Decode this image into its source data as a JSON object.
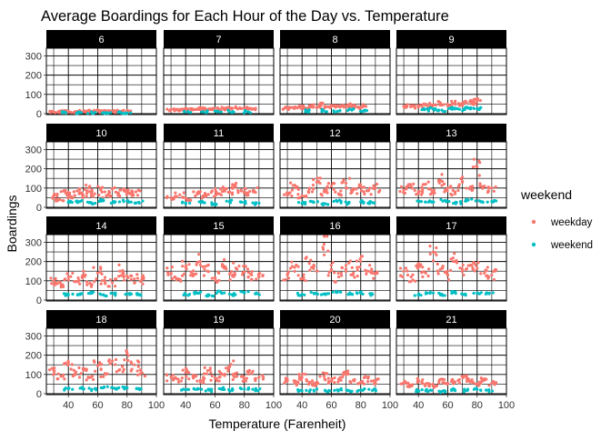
{
  "chart_data": {
    "type": "scatter",
    "title": "Average Boardings for Each Hour of the Day vs. Temperature",
    "xlabel": "Temperature (Farenheit)",
    "ylabel": "Boardings",
    "xlim": [
      25,
      100
    ],
    "ylim": [
      -5,
      340
    ],
    "x_ticks": [
      40,
      60,
      80,
      100
    ],
    "y_ticks": [
      0,
      100,
      200,
      300
    ],
    "grid": true,
    "legend": {
      "title": "weekend",
      "placement": "right",
      "entries": [
        {
          "label": "weekday",
          "color": "#F8766D"
        },
        {
          "label": "weekend",
          "color": "#00BFC4"
        }
      ]
    },
    "facets": [
      {
        "label": "6",
        "series": [
          {
            "name": "weekday",
            "x": [
              30,
              33,
              36,
              40,
              44,
              48,
              52,
              56,
              60,
              64,
              68,
              72,
              76,
              80
            ],
            "y": [
              8,
              10,
              7,
              11,
              9,
              13,
              12,
              10,
              14,
              12,
              15,
              11,
              13,
              12
            ]
          },
          {
            "name": "weekend",
            "x": [
              36,
              46,
              56,
              66,
              76,
              80
            ],
            "y": [
              3,
              4,
              3,
              5,
              4,
              3
            ]
          }
        ]
      },
      {
        "label": "7",
        "series": [
          {
            "name": "weekday",
            "x": [
              30,
              34,
              38,
              42,
              46,
              50,
              54,
              58,
              62,
              66,
              70,
              74,
              78,
              82,
              86
            ],
            "y": [
              20,
              22,
              18,
              24,
              21,
              26,
              23,
              25,
              28,
              24,
              27,
              30,
              26,
              29,
              25
            ]
          },
          {
            "name": "weekend",
            "x": [
              42,
              52,
              62,
              72,
              82
            ],
            "y": [
              8,
              10,
              9,
              11,
              10
            ]
          }
        ]
      },
      {
        "label": "8",
        "series": [
          {
            "name": "weekday",
            "x": [
              30,
              34,
              38,
              42,
              46,
              50,
              54,
              58,
              62,
              66,
              70,
              74,
              78,
              82
            ],
            "y": [
              28,
              32,
              35,
              30,
              38,
              33,
              55,
              36,
              40,
              34,
              42,
              38,
              35,
              40
            ]
          },
          {
            "name": "weekend",
            "x": [
              44,
              54,
              64,
              74,
              82
            ],
            "y": [
              14,
              16,
              12,
              18,
              15
            ]
          }
        ]
      },
      {
        "label": "9",
        "series": [
          {
            "name": "weekday",
            "x": [
              30,
              35,
              40,
              45,
              50,
              55,
              60,
              65,
              70,
              75,
              78,
              80
            ],
            "y": [
              38,
              42,
              36,
              48,
              45,
              52,
              40,
              55,
              50,
              62,
              58,
              65
            ]
          },
          {
            "name": "weekend",
            "x": [
              44,
              50,
              56,
              62,
              68,
              74,
              80
            ],
            "y": [
              20,
              24,
              18,
              26,
              22,
              28,
              25
            ]
          }
        ]
      },
      {
        "label": "10",
        "series": [
          {
            "name": "weekday",
            "x": [
              30,
              34,
              38,
              42,
              46,
              50,
              54,
              58,
              62,
              66,
              70,
              74,
              78,
              82,
              86
            ],
            "y": [
              60,
              40,
              75,
              55,
              85,
              65,
              100,
              70,
              90,
              60,
              95,
              75,
              85,
              70,
              80
            ]
          },
          {
            "name": "weekend",
            "x": [
              40,
              48,
              56,
              64,
              72,
              80,
              88
            ],
            "y": [
              25,
              30,
              22,
              35,
              28,
              32,
              26
            ]
          }
        ]
      },
      {
        "label": "11",
        "series": [
          {
            "name": "weekday",
            "x": [
              30,
              36,
              42,
              48,
              54,
              58,
              62,
              66,
              70,
              74,
              78,
              82,
              86
            ],
            "y": [
              50,
              65,
              40,
              75,
              60,
              85,
              70,
              95,
              80,
              110,
              90,
              75,
              85
            ]
          },
          {
            "name": "weekend",
            "x": [
              40,
              50,
              60,
              70,
              80,
              88
            ],
            "y": [
              22,
              28,
              18,
              30,
              25,
              20
            ]
          }
        ]
      },
      {
        "label": "12",
        "series": [
          {
            "name": "weekday",
            "x": [
              30,
              35,
              40,
              45,
              50,
              55,
              60,
              65,
              70,
              75,
              80,
              85,
              90
            ],
            "y": [
              75,
              115,
              60,
              95,
              130,
              80,
              110,
              70,
              125,
              90,
              105,
              85,
              100
            ]
          },
          {
            "name": "weekend",
            "x": [
              40,
              48,
              56,
              64,
              72,
              80,
              88
            ],
            "y": [
              20,
              25,
              18,
              30,
              22,
              28,
              24
            ]
          }
        ]
      },
      {
        "label": "13",
        "series": [
          {
            "name": "weekday",
            "x": [
              30,
              35,
              40,
              45,
              50,
              55,
              60,
              65,
              70,
              75,
              80,
              85,
              90
            ],
            "y": [
              90,
              110,
              70,
              120,
              85,
              140,
              100,
              80,
              130,
              95,
              210,
              110,
              100
            ]
          },
          {
            "name": "weekend",
            "x": [
              42,
              50,
              58,
              66,
              74,
              82,
              90
            ],
            "y": [
              30,
              28,
              35,
              25,
              38,
              32,
              30
            ]
          }
        ]
      },
      {
        "label": "14",
        "series": [
          {
            "name": "weekday",
            "x": [
              30,
              35,
              40,
              45,
              50,
              55,
              60,
              65,
              70,
              75,
              80,
              85,
              90
            ],
            "y": [
              100,
              80,
              120,
              95,
              130,
              85,
              140,
              100,
              90,
              150,
              125,
              110,
              105
            ]
          },
          {
            "name": "weekend",
            "x": [
              40,
              48,
              56,
              64,
              72,
              80,
              88
            ],
            "y": [
              30,
              28,
              35,
              25,
              30,
              32,
              27
            ]
          }
        ]
      },
      {
        "label": "15",
        "series": [
          {
            "name": "weekday",
            "x": [
              30,
              35,
              40,
              45,
              50,
              55,
              60,
              65,
              70,
              75,
              80,
              85,
              90
            ],
            "y": [
              140,
              110,
              170,
              125,
              200,
              150,
              115,
              175,
              135,
              160,
              145,
              130,
              120
            ]
          },
          {
            "name": "weekend",
            "x": [
              40,
              48,
              56,
              64,
              72,
              80,
              88
            ],
            "y": [
              30,
              35,
              25,
              40,
              28,
              38,
              32
            ]
          }
        ]
      },
      {
        "label": "16",
        "series": [
          {
            "name": "weekday",
            "x": [
              30,
              35,
              40,
              45,
              50,
              55,
              60,
              65,
              70,
              75,
              80,
              85,
              90
            ],
            "y": [
              130,
              170,
              110,
              190,
              150,
              290,
              160,
              120,
              180,
              140,
              200,
              150,
              135
            ]
          },
          {
            "name": "weekend",
            "x": [
              40,
              48,
              56,
              64,
              72,
              80,
              88
            ],
            "y": [
              30,
              35,
              28,
              40,
              32,
              36,
              30
            ]
          }
        ]
      },
      {
        "label": "17",
        "series": [
          {
            "name": "weekday",
            "x": [
              30,
              35,
              40,
              45,
              50,
              55,
              60,
              65,
              70,
              75,
              80,
              85,
              90
            ],
            "y": [
              150,
              120,
              190,
              140,
              250,
              160,
              130,
              200,
              150,
              180,
              165,
              140,
              130
            ]
          },
          {
            "name": "weekend",
            "x": [
              40,
              48,
              56,
              64,
              72,
              80,
              88
            ],
            "y": [
              25,
              35,
              30,
              40,
              28,
              36,
              32
            ]
          }
        ]
      },
      {
        "label": "18",
        "series": [
          {
            "name": "weekday",
            "x": [
              30,
              35,
              40,
              45,
              50,
              55,
              60,
              65,
              70,
              75,
              80,
              85,
              90
            ],
            "y": [
              120,
              90,
              160,
              100,
              130,
              85,
              145,
              105,
              170,
              125,
              210,
              150,
              110
            ]
          },
          {
            "name": "weekend",
            "x": [
              40,
              48,
              56,
              64,
              72,
              80,
              88
            ],
            "y": [
              25,
              28,
              22,
              32,
              26,
              30,
              27
            ]
          }
        ]
      },
      {
        "label": "19",
        "series": [
          {
            "name": "weekday",
            "x": [
              30,
              35,
              40,
              45,
              50,
              55,
              60,
              65,
              70,
              75,
              80,
              85,
              90
            ],
            "y": [
              85,
              75,
              110,
              90,
              70,
              120,
              80,
              100,
              140,
              90,
              75,
              105,
              85
            ]
          },
          {
            "name": "weekend",
            "x": [
              40,
              48,
              56,
              64,
              72,
              80,
              88
            ],
            "y": [
              20,
              22,
              18,
              25,
              20,
              24,
              21
            ]
          }
        ]
      },
      {
        "label": "20",
        "series": [
          {
            "name": "weekday",
            "x": [
              30,
              35,
              40,
              45,
              50,
              55,
              60,
              65,
              70,
              75,
              80,
              85,
              90
            ],
            "y": [
              70,
              55,
              85,
              60,
              50,
              90,
              65,
              75,
              100,
              70,
              60,
              80,
              65
            ]
          },
          {
            "name": "weekend",
            "x": [
              40,
              48,
              56,
              64,
              72,
              80,
              88
            ],
            "y": [
              15,
              18,
              14,
              20,
              16,
              19,
              17
            ]
          }
        ]
      },
      {
        "label": "21",
        "series": [
          {
            "name": "weekday",
            "x": [
              30,
              35,
              40,
              45,
              50,
              55,
              60,
              65,
              70,
              75,
              80,
              85,
              90
            ],
            "y": [
              55,
              45,
              70,
              50,
              40,
              75,
              55,
              60,
              90,
              65,
              50,
              70,
              55
            ]
          },
          {
            "name": "weekend",
            "x": [
              40,
              48,
              56,
              64,
              72,
              80,
              88
            ],
            "y": [
              15,
              18,
              12,
              20,
              16,
              22,
              17
            ]
          }
        ]
      }
    ]
  }
}
